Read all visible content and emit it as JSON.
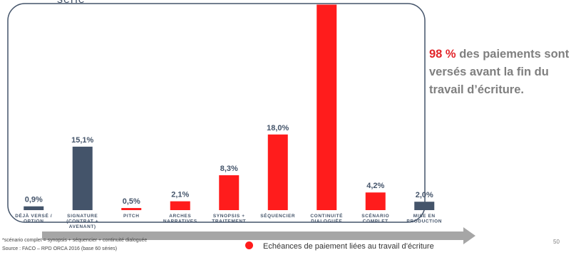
{
  "header_fragment": "série",
  "callout": {
    "highlight": "98 %",
    "text": " des paiements sont versés avant la fin du travail d’écriture."
  },
  "footnote": "*scénario complet = synopsis + séquencier + continuité dialoguée",
  "source": "Source : FACO – RPD ORCA 2016 (base 60 séries)",
  "legend": {
    "label": "Echéances de paiement liées au travail d’écriture"
  },
  "page_number": "50",
  "colors": {
    "writing": "#ff1c1c",
    "other": "#44546a",
    "frame": "#44546a",
    "arrow": "#a6a6a6"
  },
  "chart_data": {
    "type": "bar",
    "categories": [
      [
        "DÉJÀ VERSÉ /",
        "OPTION"
      ],
      [
        "SIGNATURE",
        "(CONTRAT +",
        "AVENANT)"
      ],
      [
        "PITCH"
      ],
      [
        "ARCHES",
        "NARRATIVES"
      ],
      [
        "SYNOPSIS +",
        "TRAITEMENT"
      ],
      [
        "SÉQUENCIER"
      ],
      [
        "CONTINUITÉ",
        "DIALOGUÉE"
      ],
      [
        "SCÉNARIO",
        "COMPLET"
      ],
      [
        "MISE EN",
        "PRODUCTION"
      ]
    ],
    "values": [
      0.9,
      15.1,
      0.5,
      2.1,
      8.3,
      18.0,
      48.9,
      4.2,
      2.0
    ],
    "labels": [
      "0,9%",
      "15,1%",
      "0,5%",
      "2,1%",
      "8,3%",
      "18,0%",
      "",
      "4,2%",
      "2,0%"
    ],
    "group": [
      "other",
      "other",
      "writing",
      "writing",
      "writing",
      "writing",
      "writing",
      "writing",
      "other"
    ],
    "ylim": [
      0,
      50
    ],
    "title": "",
    "xlabel": "",
    "ylabel": ""
  }
}
